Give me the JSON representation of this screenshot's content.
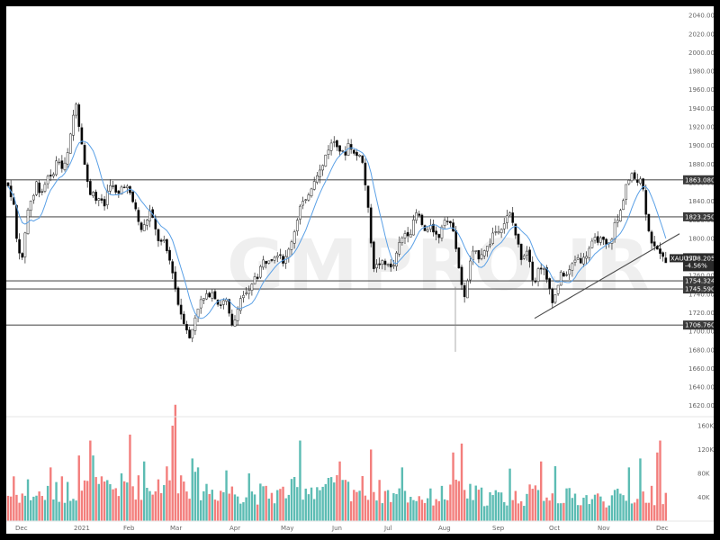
{
  "watermark": "GMPRO.IR",
  "colors": {
    "up": "#ffffff",
    "down": "#000000",
    "ma": "#5aa0e6",
    "vol_up": "#26a69a",
    "vol_down": "#ef5350",
    "level": "#555555",
    "trend": "#4a4a4a"
  },
  "chart_data": {
    "type": "candlestick",
    "symbol": "XAUUSD",
    "last_price": "1778.205",
    "change": "-4.56%",
    "y_ticks": [
      "2040.000",
      "2020.000",
      "2000.000",
      "1980.000",
      "1960.000",
      "1940.000",
      "1920.000",
      "1900.000",
      "1880.000",
      "1860.000",
      "1840.000",
      "1820.000",
      "1800.000",
      "1780.000",
      "1760.000",
      "1740.000",
      "1720.000",
      "1700.000",
      "1680.000",
      "1660.000",
      "1640.000",
      "1620.000"
    ],
    "ylim": [
      1612,
      2044
    ],
    "x_labels": [
      "Dec",
      "2021",
      "Feb",
      "Mar",
      "Apr",
      "May",
      "Jun",
      "Jul",
      "Aug",
      "Sep",
      "Oct",
      "Nov",
      "Dec"
    ],
    "volume_ticks": [
      "160K",
      "120K",
      "80K",
      "40K"
    ],
    "horizontal_levels": [
      {
        "value": 1863.08,
        "label": "1863.080"
      },
      {
        "value": 1823.25,
        "label": "1823.250"
      },
      {
        "value": 1754.324,
        "label": "1754.324"
      },
      {
        "value": 1745.59,
        "label": "1745.590"
      },
      {
        "value": 1706.76,
        "label": "1706.760"
      }
    ],
    "trendline": {
      "from": [
        1727,
        "Sep end"
      ],
      "to": [
        1805,
        "Dec"
      ]
    },
    "price_path": [
      [
        0,
        1860
      ],
      [
        4,
        1852
      ],
      [
        8,
        1838
      ],
      [
        11,
        1800
      ],
      [
        14,
        1790
      ],
      [
        18,
        1775
      ],
      [
        22,
        1820
      ],
      [
        26,
        1840
      ],
      [
        30,
        1845
      ],
      [
        34,
        1862
      ],
      [
        38,
        1848
      ],
      [
        42,
        1855
      ],
      [
        46,
        1870
      ],
      [
        50,
        1862
      ],
      [
        54,
        1880
      ],
      [
        58,
        1885
      ],
      [
        62,
        1875
      ],
      [
        66,
        1880
      ],
      [
        70,
        1900
      ],
      [
        74,
        1930
      ],
      [
        78,
        1950
      ],
      [
        81,
        1920
      ],
      [
        84,
        1905
      ],
      [
        87,
        1880
      ],
      [
        90,
        1860
      ],
      [
        93,
        1848
      ],
      [
        96,
        1855
      ],
      [
        100,
        1840
      ],
      [
        104,
        1845
      ],
      [
        108,
        1830
      ],
      [
        112,
        1850
      ],
      [
        116,
        1862
      ],
      [
        120,
        1850
      ],
      [
        124,
        1845
      ],
      [
        128,
        1855
      ],
      [
        132,
        1860
      ],
      [
        136,
        1850
      ],
      [
        140,
        1840
      ],
      [
        144,
        1832
      ],
      [
        148,
        1810
      ],
      [
        152,
        1810
      ],
      [
        156,
        1820
      ],
      [
        160,
        1830
      ],
      [
        164,
        1815
      ],
      [
        168,
        1800
      ],
      [
        172,
        1795
      ],
      [
        176,
        1795
      ],
      [
        180,
        1780
      ],
      [
        184,
        1770
      ],
      [
        188,
        1745
      ],
      [
        192,
        1725
      ],
      [
        196,
        1715
      ],
      [
        200,
        1705
      ],
      [
        204,
        1690
      ],
      [
        208,
        1708
      ],
      [
        212,
        1725
      ],
      [
        216,
        1732
      ],
      [
        220,
        1735
      ],
      [
        224,
        1738
      ],
      [
        228,
        1745
      ],
      [
        232,
        1738
      ],
      [
        236,
        1728
      ],
      [
        240,
        1730
      ],
      [
        244,
        1735
      ],
      [
        248,
        1715
      ],
      [
        252,
        1700
      ],
      [
        256,
        1725
      ],
      [
        260,
        1735
      ],
      [
        264,
        1740
      ],
      [
        268,
        1738
      ],
      [
        272,
        1745
      ],
      [
        276,
        1760
      ],
      [
        280,
        1760
      ],
      [
        284,
        1775
      ],
      [
        288,
        1775
      ],
      [
        292,
        1780
      ],
      [
        296,
        1780
      ],
      [
        300,
        1785
      ],
      [
        304,
        1785
      ],
      [
        308,
        1775
      ],
      [
        312,
        1780
      ],
      [
        316,
        1795
      ],
      [
        320,
        1808
      ],
      [
        324,
        1825
      ],
      [
        328,
        1840
      ],
      [
        332,
        1835
      ],
      [
        336,
        1850
      ],
      [
        340,
        1858
      ],
      [
        344,
        1870
      ],
      [
        348,
        1872
      ],
      [
        352,
        1878
      ],
      [
        356,
        1895
      ],
      [
        360,
        1900
      ],
      [
        364,
        1905
      ],
      [
        368,
        1902
      ],
      [
        372,
        1892
      ],
      [
        376,
        1890
      ],
      [
        380,
        1902
      ],
      [
        384,
        1898
      ],
      [
        388,
        1885
      ],
      [
        392,
        1895
      ],
      [
        396,
        1880
      ],
      [
        400,
        1850
      ],
      [
        404,
        1810
      ],
      [
        408,
        1770
      ],
      [
        412,
        1770
      ],
      [
        416,
        1775
      ],
      [
        420,
        1770
      ],
      [
        424,
        1775
      ],
      [
        428,
        1765
      ],
      [
        432,
        1775
      ],
      [
        436,
        1792
      ],
      [
        440,
        1800
      ],
      [
        444,
        1808
      ],
      [
        448,
        1805
      ],
      [
        452,
        1815
      ],
      [
        456,
        1828
      ],
      [
        460,
        1820
      ],
      [
        464,
        1808
      ],
      [
        468,
        1805
      ],
      [
        472,
        1818
      ],
      [
        476,
        1805
      ],
      [
        480,
        1800
      ],
      [
        484,
        1815
      ],
      [
        488,
        1826
      ],
      [
        492,
        1812
      ],
      [
        496,
        1815
      ],
      [
        500,
        1790
      ],
      [
        504,
        1760
      ],
      [
        508,
        1735
      ],
      [
        512,
        1750
      ],
      [
        516,
        1780
      ],
      [
        520,
        1785
      ],
      [
        524,
        1780
      ],
      [
        528,
        1785
      ],
      [
        532,
        1790
      ],
      [
        536,
        1790
      ],
      [
        540,
        1805
      ],
      [
        544,
        1808
      ],
      [
        548,
        1812
      ],
      [
        552,
        1815
      ],
      [
        556,
        1822
      ],
      [
        560,
        1826
      ],
      [
        564,
        1812
      ],
      [
        568,
        1795
      ],
      [
        572,
        1780
      ],
      [
        576,
        1785
      ],
      [
        580,
        1790
      ],
      [
        584,
        1760
      ],
      [
        588,
        1755
      ],
      [
        592,
        1770
      ],
      [
        596,
        1770
      ],
      [
        600,
        1755
      ],
      [
        604,
        1745
      ],
      [
        608,
        1730
      ],
      [
        612,
        1748
      ],
      [
        616,
        1760
      ],
      [
        620,
        1762
      ],
      [
        624,
        1760
      ],
      [
        628,
        1770
      ],
      [
        632,
        1778
      ],
      [
        636,
        1780
      ],
      [
        640,
        1775
      ],
      [
        644,
        1782
      ],
      [
        648,
        1790
      ],
      [
        652,
        1795
      ],
      [
        656,
        1800
      ],
      [
        660,
        1798
      ],
      [
        664,
        1795
      ],
      [
        668,
        1790
      ],
      [
        672,
        1798
      ],
      [
        676,
        1815
      ],
      [
        680,
        1820
      ],
      [
        684,
        1835
      ],
      [
        688,
        1858
      ],
      [
        692,
        1862
      ],
      [
        696,
        1868
      ],
      [
        700,
        1862
      ],
      [
        704,
        1868
      ],
      [
        708,
        1850
      ],
      [
        712,
        1820
      ],
      [
        716,
        1800
      ],
      [
        720,
        1790
      ],
      [
        724,
        1785
      ],
      [
        728,
        1788
      ],
      [
        732,
        1776
      ]
    ],
    "volume_profile": [
      [
        0,
        48
      ],
      [
        40,
        48
      ],
      [
        70,
        55
      ],
      [
        90,
        62
      ],
      [
        110,
        58
      ],
      [
        135,
        65
      ],
      [
        160,
        60
      ],
      [
        185,
        85
      ],
      [
        200,
        70
      ],
      [
        230,
        55
      ],
      [
        260,
        52
      ],
      [
        300,
        48
      ],
      [
        330,
        62
      ],
      [
        360,
        60
      ],
      [
        400,
        60
      ],
      [
        430,
        48
      ],
      [
        470,
        42
      ],
      [
        500,
        55
      ],
      [
        530,
        45
      ],
      [
        560,
        42
      ],
      [
        590,
        50
      ],
      [
        620,
        44
      ],
      [
        660,
        40
      ],
      [
        700,
        45
      ],
      [
        732,
        48
      ]
    ],
    "volume_spikes": [
      [
        8,
        35
      ],
      [
        24,
        30
      ],
      [
        48,
        50
      ],
      [
        62,
        35
      ],
      [
        82,
        70
      ],
      [
        92,
        95
      ],
      [
        96,
        70
      ],
      [
        136,
        105
      ],
      [
        154,
        60
      ],
      [
        184,
        120
      ],
      [
        188,
        155
      ],
      [
        206,
        65
      ],
      [
        214,
        50
      ],
      [
        246,
        45
      ],
      [
        270,
        40
      ],
      [
        326,
        95
      ],
      [
        372,
        60
      ],
      [
        404,
        80
      ],
      [
        440,
        50
      ],
      [
        498,
        75
      ],
      [
        506,
        90
      ],
      [
        560,
        48
      ],
      [
        594,
        60
      ],
      [
        610,
        52
      ],
      [
        692,
        50
      ],
      [
        704,
        65
      ],
      [
        724,
        75
      ],
      [
        728,
        95
      ]
    ]
  }
}
